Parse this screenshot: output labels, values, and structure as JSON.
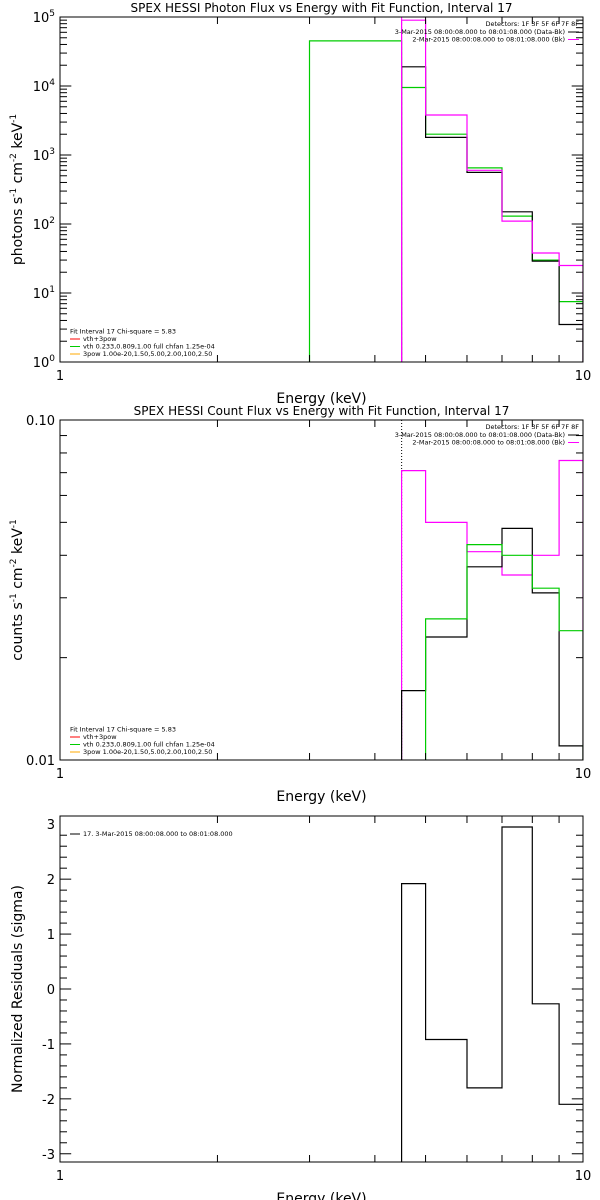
{
  "colors": {
    "black": "#000000",
    "magenta": "#ff00ff",
    "green": "#00cc00",
    "red": "#ff0000",
    "orange": "#ffaa00"
  },
  "chart_data": [
    {
      "type": "line",
      "step": true,
      "title": "SPEX HESSI Photon Flux vs Energy with Fit Function, Interval 17",
      "xlabel": "Energy (keV)",
      "ylabel_parts": [
        "photons s",
        "-1",
        " cm",
        "-2",
        " keV",
        "-1"
      ],
      "xscale": "log",
      "yscale": "log",
      "xlim": [
        1,
        10
      ],
      "ylim": [
        1,
        100000
      ],
      "xticks": [
        {
          "v": 1,
          "t": "1"
        },
        {
          "v": 10,
          "t": "10"
        }
      ],
      "yticks": [
        {
          "v": 1,
          "b": "10",
          "e": "0"
        },
        {
          "v": 10,
          "b": "10",
          "e": "1"
        },
        {
          "v": 100,
          "b": "10",
          "e": "2"
        },
        {
          "v": 1000,
          "b": "10",
          "e": "3"
        },
        {
          "v": 10000,
          "b": "10",
          "e": "4"
        },
        {
          "v": 100000,
          "b": "10",
          "e": "5"
        }
      ],
      "legend_topright": {
        "header": "Detectors: 1F 3F 5F 6F 7F 8F",
        "entries": [
          {
            "text": "3-Mar-2015 08:00:08.000 to 08:01:08.000 (Data-Bk)",
            "color": "#000000"
          },
          {
            "text": "2-Mar-2015 08:00:08.000 to 08:01:08.000 (Bk)",
            "color": "#ff00ff"
          }
        ]
      },
      "legend_bottomleft": {
        "header": "Fit Interval 17   Chi-square = 5.83",
        "entries": [
          {
            "text": "vth+3pow",
            "color": "#ff0000"
          },
          {
            "text": "vth 0.233,0.809,1.00  full chfan 1.25e-04",
            "color": "#00cc00"
          },
          {
            "text": "3pow 1.00e-20,1.50,5.00,2.00,100,2.50",
            "color": "#ffaa00"
          }
        ]
      },
      "vline": {
        "x": 4.5,
        "color": "#ff00ff",
        "style": "dashed"
      },
      "edges": [
        3,
        4.5,
        5,
        6,
        7,
        8,
        9,
        10
      ],
      "series": [
        {
          "color": "#00cc00",
          "values": [
            45000,
            9500,
            2000,
            650,
            130,
            30,
            7.5
          ]
        },
        {
          "color": "#000000",
          "values": [
            null,
            19000,
            1800,
            560,
            150,
            29,
            3.5
          ]
        },
        {
          "color": "#ff00ff",
          "values": [
            null,
            90000,
            3800,
            600,
            110,
            38,
            25
          ]
        }
      ]
    },
    {
      "type": "line",
      "step": true,
      "title": "SPEX HESSI Count Flux vs Energy with Fit Function, Interval 17",
      "xlabel": "Energy (keV)",
      "ylabel_parts": [
        "counts s",
        "-1",
        " cm",
        "-2",
        " keV",
        "-1"
      ],
      "xscale": "log",
      "yscale": "log",
      "xlim": [
        1,
        10
      ],
      "ylim": [
        0.01,
        0.1
      ],
      "xticks": [
        {
          "v": 1,
          "t": "1"
        },
        {
          "v": 10,
          "t": "10"
        }
      ],
      "yticks": [
        {
          "v": 0.01,
          "t": "0.01"
        },
        {
          "v": 0.1,
          "t": "0.10"
        }
      ],
      "legend_topright": {
        "header": "Detectors: 1F 3F 5F 6F 7F 8F",
        "entries": [
          {
            "text": "3-Mar-2015 08:00:08.000 to 08:01:08.000 (Data-Bk)",
            "color": "#000000"
          },
          {
            "text": "2-Mar-2015 08:00:08.000 to 08:01:08.000 (Bk)",
            "color": "#ff00ff"
          }
        ]
      },
      "legend_bottomleft": {
        "header": "Fit Interval 17   Chi-square = 5.83",
        "entries": [
          {
            "text": "vth+3pow",
            "color": "#ff0000"
          },
          {
            "text": "vth 0.233,0.809,1.00  full chfan 1.25e-04",
            "color": "#00cc00"
          },
          {
            "text": "3pow 1.00e-20,1.50,5.00,2.00,100,2.50",
            "color": "#ffaa00"
          }
        ]
      },
      "vline": {
        "x": 4.5,
        "color": "#000000",
        "style": "dotted"
      },
      "edges": [
        4.5,
        5,
        6,
        7,
        8,
        9,
        10
      ],
      "series": [
        {
          "color": "#ff00ff",
          "values": [
            0.071,
            0.05,
            0.041,
            0.035,
            0.04,
            0.076
          ]
        },
        {
          "color": "#000000",
          "values": [
            0.016,
            0.023,
            0.037,
            0.048,
            0.031,
            0.011
          ]
        },
        {
          "color": "#00cc00",
          "values": [
            null,
            0.026,
            0.043,
            0.04,
            0.032,
            0.024
          ]
        }
      ]
    },
    {
      "type": "line",
      "step": true,
      "title": "",
      "xlabel": "Energy (keV)",
      "ylabel": "Normalized Residuals (sigma)",
      "xscale": "log",
      "yscale": "linear",
      "xlim": [
        1,
        10
      ],
      "ylim": [
        -3.15,
        3.15
      ],
      "xticks": [
        {
          "v": 1,
          "t": "1"
        },
        {
          "v": 10,
          "t": "10"
        }
      ],
      "yticks": [
        {
          "v": 3,
          "t": "3"
        },
        {
          "v": 2,
          "t": "2"
        },
        {
          "v": 1,
          "t": "1"
        },
        {
          "v": 0,
          "t": "0"
        },
        {
          "v": -1,
          "t": "-1"
        },
        {
          "v": -2,
          "t": "-2"
        },
        {
          "v": -3,
          "t": "-3"
        }
      ],
      "legend_topleft": {
        "entries": [
          {
            "text": "17.  3-Mar-2015 08:00:08.000 to 08:01:08.000",
            "color": "#000000"
          }
        ]
      },
      "edges": [
        4.5,
        5,
        6,
        7,
        8,
        9,
        10
      ],
      "series": [
        {
          "color": "#000000",
          "values": [
            1.92,
            -0.92,
            -1.8,
            2.95,
            -0.27,
            -2.1
          ],
          "start_from_bottom": true
        }
      ]
    }
  ]
}
